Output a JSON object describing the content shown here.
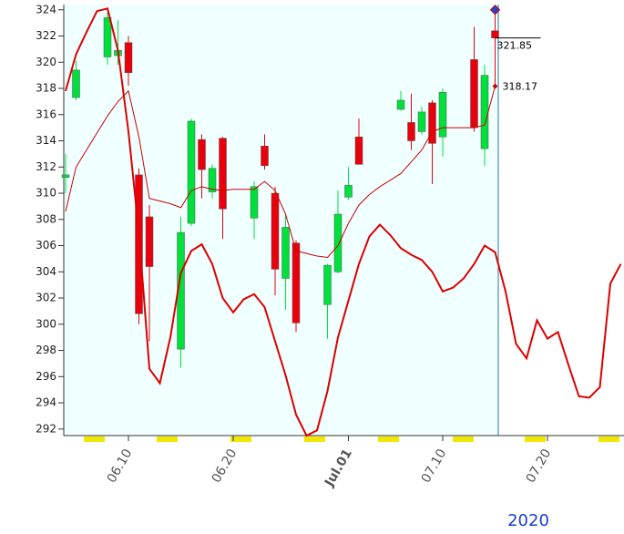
{
  "chart_data": {
    "type": "candlestick",
    "ylim": [
      291.5,
      324.4
    ],
    "yticks": [
      292,
      294,
      296,
      298,
      300,
      302,
      304,
      306,
      308,
      310,
      312,
      314,
      316,
      318,
      320,
      322,
      324
    ],
    "categories": [
      null,
      null,
      null,
      null,
      null,
      null,
      "06.10",
      null,
      null,
      null,
      null,
      null,
      null,
      null,
      null,
      null,
      "06.20",
      null,
      null,
      null,
      null,
      null,
      null,
      null,
      null,
      null,
      null,
      "Jul.01",
      null,
      null,
      null,
      null,
      null,
      null,
      null,
      null,
      "07.10",
      null,
      null,
      null,
      null,
      null,
      null,
      null,
      null,
      null,
      "07.20",
      null,
      null,
      null,
      null,
      null,
      null,
      null
    ],
    "open": [
      311.2,
      317.3,
      null,
      null,
      320.4,
      320.5,
      321.5,
      311.4,
      308.2,
      null,
      null,
      298.1,
      307.7,
      314.1,
      310.1,
      314.2,
      null,
      null,
      308.1,
      313.6,
      310.0,
      303.5,
      306.2,
      null,
      null,
      301.5,
      304.0,
      309.7,
      314.3,
      null,
      null,
      null,
      316.4,
      315.4,
      314.7,
      316.9,
      314.3,
      null,
      null,
      320.2,
      313.4,
      322.4,
      null,
      null,
      null,
      null,
      null,
      null,
      null,
      null,
      null,
      null,
      null,
      null
    ],
    "high": [
      313.0,
      320.1,
      null,
      null,
      323.8,
      323.2,
      322.0,
      311.9,
      309.1,
      null,
      null,
      308.2,
      315.7,
      314.5,
      312.2,
      314.3,
      null,
      null,
      310.9,
      314.5,
      310.5,
      308.4,
      306.4,
      null,
      null,
      304.6,
      310.2,
      312.0,
      315.7,
      null,
      null,
      null,
      317.8,
      317.6,
      316.6,
      317.1,
      318.0,
      null,
      null,
      322.7,
      319.8,
      324.0,
      null,
      null,
      null,
      null,
      null,
      null,
      null,
      null,
      null,
      null,
      null,
      null
    ],
    "low": [
      310.0,
      317.1,
      null,
      null,
      319.8,
      319.8,
      318.2,
      300.0,
      298.7,
      null,
      null,
      296.7,
      307.5,
      309.6,
      309.6,
      306.5,
      null,
      null,
      306.5,
      311.8,
      302.2,
      301.1,
      299.4,
      null,
      null,
      298.9,
      303.9,
      309.5,
      312.2,
      null,
      null,
      null,
      316.3,
      313.3,
      314.5,
      310.7,
      312.8,
      null,
      null,
      314.7,
      312.1,
      318.2,
      null,
      null,
      null,
      null,
      null,
      null,
      null,
      null,
      null,
      null,
      null,
      null
    ],
    "close": [
      311.4,
      319.4,
      null,
      null,
      323.4,
      320.9,
      319.2,
      300.8,
      304.4,
      null,
      null,
      307.0,
      315.5,
      311.8,
      311.9,
      308.8,
      null,
      null,
      310.5,
      312.1,
      304.2,
      307.4,
      300.1,
      null,
      null,
      304.5,
      308.4,
      310.6,
      312.2,
      null,
      null,
      null,
      317.1,
      314.0,
      316.2,
      313.8,
      317.7,
      null,
      null,
      315.0,
      319.0,
      321.85,
      null,
      null,
      null,
      null,
      null,
      null,
      null,
      null,
      null,
      null,
      null,
      null
    ],
    "up_color": "#00e03c",
    "down_color": "#e8000c",
    "series": [
      {
        "color": "#cc0000",
        "values": [
          308.6,
          312.0,
          313.3,
          314.6,
          315.9,
          317.0,
          317.8,
          314.3,
          309.6,
          309.4,
          309.2,
          308.9,
          310.2,
          310.5,
          310.3,
          310.2,
          310.3,
          310.3,
          310.3,
          310.9,
          310.2,
          308.4,
          305.6,
          305.4,
          305.2,
          305.1,
          306.0,
          307.7,
          309.1,
          309.9,
          310.5,
          311.0,
          311.5,
          312.4,
          313.3,
          314.7,
          315.0,
          315.0,
          315.0,
          315.0,
          315.2,
          318.17,
          null,
          null,
          null,
          null,
          null,
          null,
          null,
          null,
          null,
          null,
          null,
          null
        ]
      },
      {
        "color": "#dd0000",
        "values": [
          317.8,
          320.6,
          322.3,
          323.9,
          324.1,
          320.9,
          314.7,
          307.0,
          296.6,
          295.5,
          299.0,
          303.9,
          305.6,
          306.1,
          304.6,
          302.0,
          300.9,
          301.9,
          302.3,
          301.3,
          298.7,
          296.1,
          293.1,
          291.5,
          291.9,
          294.9,
          299.0,
          301.8,
          304.6,
          306.7,
          307.6,
          306.8,
          305.8,
          305.3,
          304.9,
          304.0,
          302.5,
          302.8,
          303.5,
          304.6,
          306.0,
          305.5,
          302.5,
          298.5,
          297.4,
          300.3,
          298.9,
          299.4,
          296.9,
          294.5,
          294.4,
          295.2,
          303.1,
          304.6
        ]
      }
    ],
    "year_label": "2020"
  }
}
